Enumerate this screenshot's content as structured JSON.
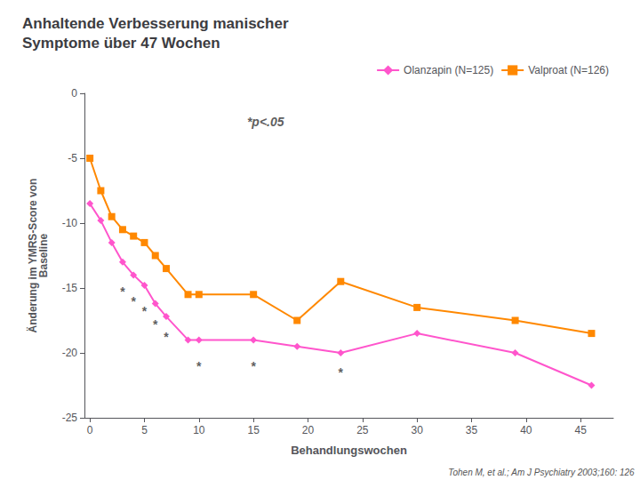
{
  "chart_data": {
    "type": "line",
    "title": "Anhaltende Verbesserung manischer\nSymptome über 47 Wochen",
    "xlabel": "Behandlungswochen",
    "ylabel": "Änderung im YMRS-Score von\nBaseline",
    "x": [
      0,
      1,
      2,
      3,
      4,
      5,
      6,
      7,
      9,
      10,
      15,
      19,
      23,
      30,
      39,
      46
    ],
    "series": [
      {
        "name": "Olanzapin (N=125)",
        "color": "#ff55cc",
        "marker": "diamond",
        "values": [
          -8.5,
          -9.8,
          -11.5,
          -13.0,
          -14.0,
          -14.8,
          -16.2,
          -17.2,
          -19.0,
          -19.0,
          -19.0,
          -19.5,
          -20.0,
          -18.5,
          -20.0,
          -22.5
        ]
      },
      {
        "name": "Valproat (N=126)",
        "color": "#ff8800",
        "marker": "square",
        "values": [
          -5.0,
          -7.5,
          -9.5,
          -10.5,
          -11.0,
          -11.5,
          -12.5,
          -13.5,
          -15.5,
          -15.5,
          -15.5,
          -17.5,
          -14.5,
          -16.5,
          -17.5,
          -18.5
        ]
      }
    ],
    "annotations": [
      {
        "text": "*",
        "x": 3,
        "y": -15.3
      },
      {
        "text": "*",
        "x": 4,
        "y": -16.0
      },
      {
        "text": "*",
        "x": 5,
        "y": -16.8
      },
      {
        "text": "*",
        "x": 6,
        "y": -17.8
      },
      {
        "text": "*",
        "x": 7,
        "y": -18.8
      },
      {
        "text": "*",
        "x": 10,
        "y": -21.0
      },
      {
        "text": "*",
        "x": 15,
        "y": -21.0
      },
      {
        "text": "*",
        "x": 23,
        "y": -21.5
      },
      {
        "text": "*p<.05",
        "x": 14,
        "y": -2.2
      },
      {
        "text": "Tohen M, et al.; Am J Psychiatry 2003;160: 126"
      }
    ],
    "xlim": [
      -0.5,
      48
    ],
    "xticks": [
      0,
      5,
      10,
      15,
      20,
      25,
      30,
      35,
      40,
      45
    ],
    "ylim": [
      -25,
      0
    ],
    "yticks": [
      0,
      -5,
      -10,
      -15,
      -20,
      -25
    ],
    "grid": false,
    "legend": "upper right"
  }
}
